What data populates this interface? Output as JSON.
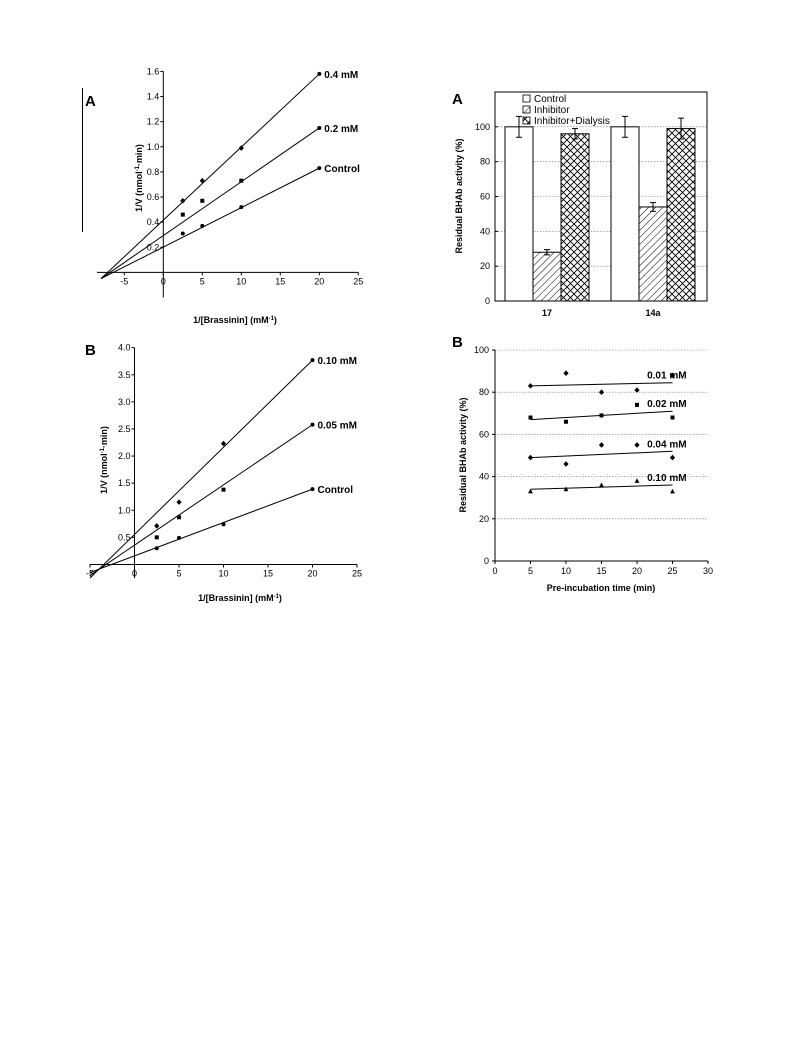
{
  "chart_data": [
    {
      "panel": "A",
      "type": "line",
      "xlabel": "1/[Brassinin] (mM",
      "xlabel_sup": "-1",
      "xlabel_tail": ")",
      "ylabel": "1/V (nmol",
      "ylabel_sup": "-1",
      "ylabel_tail": "·min)",
      "xlim": [
        -8.5,
        25
      ],
      "ylim": [
        -0.2,
        1.6
      ],
      "xticks": [
        -5,
        0,
        5,
        10,
        15,
        20,
        25
      ],
      "yticks": [
        0.2,
        0.4,
        0.6,
        0.8,
        1.0,
        1.2,
        1.4,
        1.6
      ],
      "series": [
        {
          "name": "0.4 mM",
          "marker": "diamond",
          "x": [
            2.5,
            5,
            10
          ],
          "y": [
            0.57,
            0.73,
            0.99
          ],
          "line": [
            [
              -8,
              -0.05
            ],
            [
              20,
              1.58
            ]
          ],
          "end_point": [
            20,
            1.58
          ]
        },
        {
          "name": "0.2 mM",
          "marker": "square",
          "x": [
            2.5,
            5,
            10
          ],
          "y": [
            0.46,
            0.57,
            0.73
          ],
          "line": [
            [
              -8,
              -0.05
            ],
            [
              20,
              1.15
            ]
          ],
          "end_point": [
            20,
            1.15
          ]
        },
        {
          "name": "Control",
          "marker": "circle",
          "x": [
            2.5,
            5,
            10
          ],
          "y": [
            0.31,
            0.37,
            0.52
          ],
          "line": [
            [
              -8,
              -0.05
            ],
            [
              20,
              0.83
            ]
          ],
          "end_point": [
            20,
            0.83
          ]
        }
      ]
    },
    {
      "panel": "B",
      "type": "line",
      "xlabel": "1/[Brassinin] (mM",
      "xlabel_sup": "-1",
      "xlabel_tail": ")",
      "ylabel": "1/V (nmol",
      "ylabel_sup": "-1",
      "ylabel_tail": "·min)",
      "xlim": [
        -5,
        25
      ],
      "ylim": [
        -0.25,
        4.0
      ],
      "xticks": [
        -5,
        0,
        5,
        10,
        15,
        20,
        25
      ],
      "yticks": [
        0.5,
        1.0,
        1.5,
        2.0,
        2.5,
        3.0,
        3.5,
        4.0
      ],
      "series": [
        {
          "name": "0.10 mM",
          "marker": "diamond",
          "x": [
            2.5,
            5,
            10
          ],
          "y": [
            0.71,
            1.15,
            2.23
          ],
          "line": [
            [
              -5,
              -0.25
            ],
            [
              20,
              3.77
            ]
          ],
          "end_point": [
            20,
            3.77
          ]
        },
        {
          "name": "0.05 mM",
          "marker": "square",
          "x": [
            2.5,
            5,
            10
          ],
          "y": [
            0.5,
            0.87,
            1.38
          ],
          "line": [
            [
              -5,
              -0.2
            ],
            [
              20,
              2.58
            ]
          ],
          "end_point": [
            20,
            2.58
          ]
        },
        {
          "name": "Control",
          "marker": "circle",
          "x": [
            2.5,
            5,
            10
          ],
          "y": [
            0.3,
            0.49,
            0.74
          ],
          "line": [
            [
              -5,
              -0.15
            ],
            [
              20,
              1.39
            ]
          ],
          "end_point": [
            20,
            1.39
          ]
        }
      ]
    },
    {
      "panel": "A",
      "type": "bar",
      "ylabel": "Residual BHAb activity (%)",
      "ylim": [
        0,
        120
      ],
      "yticks": [
        0,
        20,
        40,
        60,
        80,
        100
      ],
      "grid": true,
      "legend_position": "top-left",
      "categories": [
        "17",
        "14a"
      ],
      "series": [
        {
          "name": "Control",
          "pattern": "plain",
          "values": [
            100,
            100
          ],
          "errors": [
            6,
            6
          ]
        },
        {
          "name": "Inhibitor",
          "pattern": "hatch",
          "values": [
            28,
            54
          ],
          "errors": [
            1.5,
            2.5
          ]
        },
        {
          "name": "Inhibitor+Dialysis",
          "pattern": "crosshatch",
          "values": [
            96,
            99
          ],
          "errors": [
            3,
            6
          ]
        }
      ]
    },
    {
      "panel": "B",
      "type": "scatter",
      "xlabel": "Pre-incubation time (min)",
      "ylabel": "Residual BHAb activity (%)",
      "xlim": [
        0,
        30
      ],
      "ylim": [
        0,
        100
      ],
      "xticks": [
        0,
        5,
        10,
        15,
        20,
        25,
        30
      ],
      "yticks": [
        0,
        20,
        40,
        60,
        80,
        100
      ],
      "grid": true,
      "series": [
        {
          "name": "0.01 mM",
          "marker": "diamond",
          "x": [
            5,
            10,
            15,
            20,
            25
          ],
          "y": [
            83,
            89,
            80,
            81,
            88
          ],
          "fit": [
            [
              5,
              83
            ],
            [
              25,
              84.5
            ]
          ]
        },
        {
          "name": "0.02 mM",
          "marker": "square",
          "x": [
            5,
            10,
            15,
            20,
            25
          ],
          "y": [
            68,
            66,
            69,
            74,
            68
          ],
          "fit": [
            [
              5,
              67
            ],
            [
              25,
              71
            ]
          ]
        },
        {
          "name": "0.04 mM",
          "marker": "diamond",
          "x": [
            5,
            10,
            15,
            20,
            25
          ],
          "y": [
            49,
            46,
            55,
            55,
            49
          ],
          "fit": [
            [
              5,
              49
            ],
            [
              25,
              52
            ]
          ]
        },
        {
          "name": "0.10 mM",
          "marker": "triangle",
          "x": [
            5,
            10,
            15,
            20,
            25
          ],
          "y": [
            33,
            34,
            36,
            38,
            33
          ],
          "fit": [
            [
              5,
              34
            ],
            [
              25,
              36
            ]
          ]
        }
      ]
    }
  ]
}
